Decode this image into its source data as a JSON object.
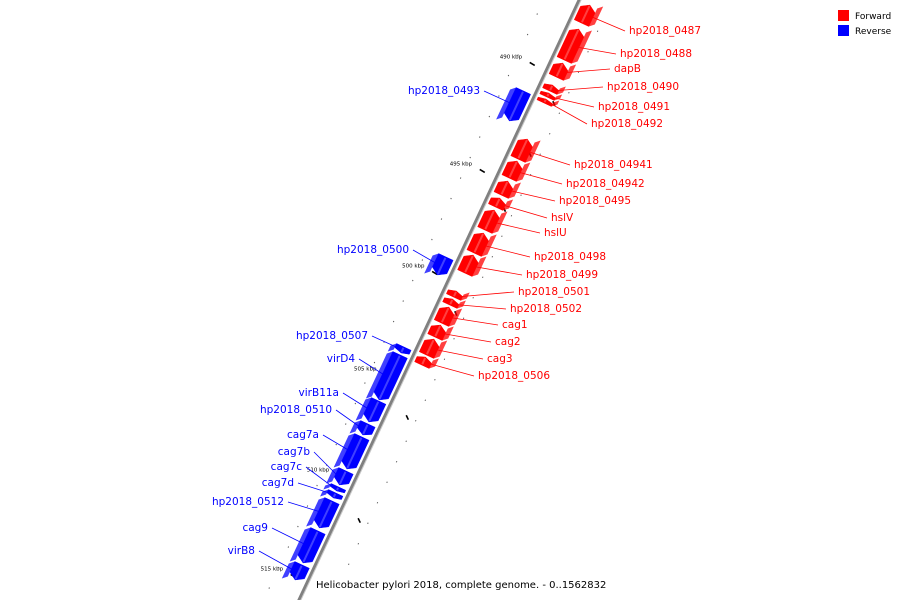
{
  "legend": [
    {
      "label": "Forward",
      "color": "#ff0000"
    },
    {
      "label": "Reverse",
      "color": "#0000ff"
    }
  ],
  "caption": "Helicobacter pylori 2018, complete genome. - 0..1562832",
  "colors": {
    "forward": "#ff0000",
    "reverse": "#0000ff",
    "axis": "#808080"
  },
  "ticks": [
    {
      "label": "490 kbp",
      "kbp": 490
    },
    {
      "label": "495 kbp",
      "kbp": 495
    },
    {
      "label": "500 kbp",
      "kbp": 500
    },
    {
      "label": "505 kbp",
      "kbp": 505
    },
    {
      "label": "510 kbp",
      "kbp": 510
    },
    {
      "label": "515 kbp",
      "kbp": 515
    }
  ],
  "forward_genes": [
    {
      "name": "hp2018_0487"
    },
    {
      "name": "hp2018_0488"
    },
    {
      "name": "dapB"
    },
    {
      "name": "hp2018_0490"
    },
    {
      "name": "hp2018_0491"
    },
    {
      "name": "hp2018_0492"
    },
    {
      "name": "hp2018_04941"
    },
    {
      "name": "hp2018_04942"
    },
    {
      "name": "hp2018_0495"
    },
    {
      "name": "hslV"
    },
    {
      "name": "hslU"
    },
    {
      "name": "hp2018_0498"
    },
    {
      "name": "hp2018_0499"
    },
    {
      "name": "hp2018_0501"
    },
    {
      "name": "hp2018_0502"
    },
    {
      "name": "cag1"
    },
    {
      "name": "cag2"
    },
    {
      "name": "cag3"
    },
    {
      "name": "hp2018_0506"
    }
  ],
  "reverse_genes": [
    {
      "name": "hp2018_0493"
    },
    {
      "name": "hp2018_0500"
    },
    {
      "name": "hp2018_0507"
    },
    {
      "name": "virD4"
    },
    {
      "name": "virB11a"
    },
    {
      "name": "hp2018_0510"
    },
    {
      "name": "cag7a"
    },
    {
      "name": "cag7b"
    },
    {
      "name": "cag7c"
    },
    {
      "name": "cag7d"
    },
    {
      "name": "hp2018_0512"
    },
    {
      "name": "cag9"
    },
    {
      "name": "virB8"
    }
  ]
}
